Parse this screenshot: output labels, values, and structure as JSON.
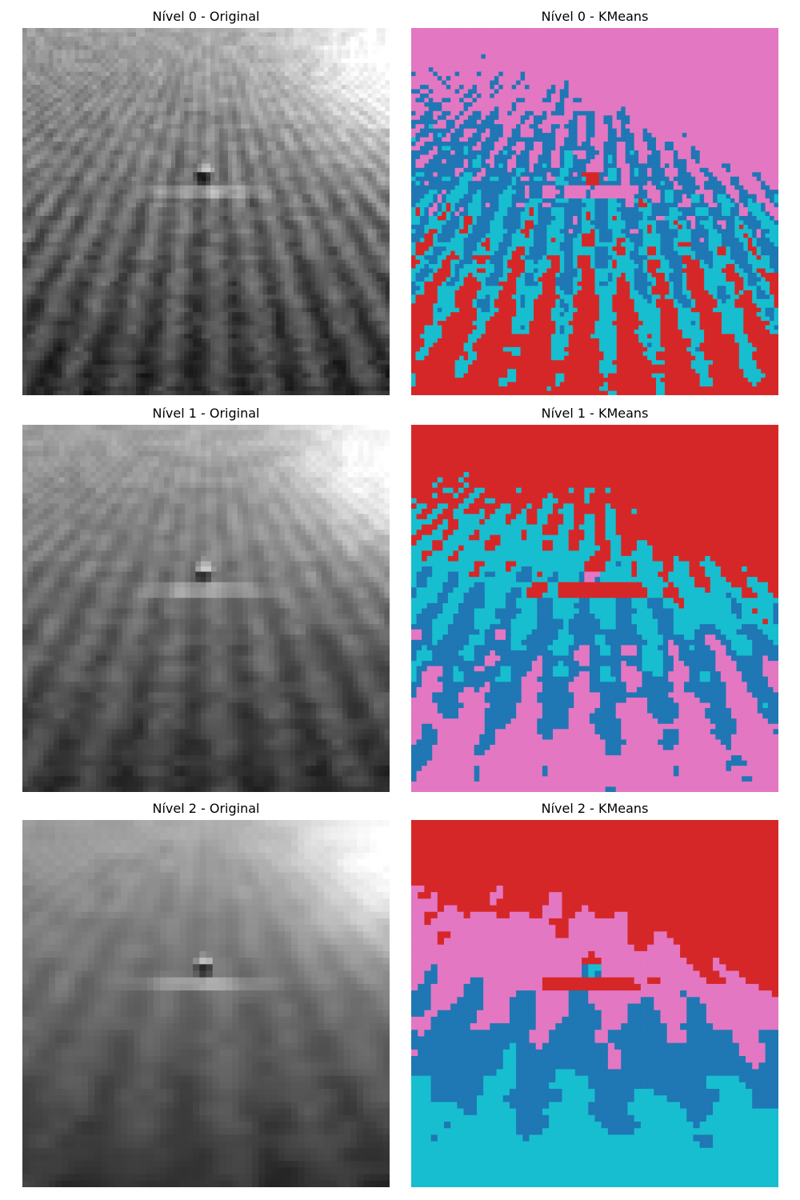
{
  "panels": [
    {
      "title": "Nível 0 - Original",
      "kind": "grayscale",
      "level": 0
    },
    {
      "title": "Nível 0 - KMeans",
      "kind": "kmeans",
      "level": 0,
      "cluster_order": [
        "pink",
        "blue",
        "cyan",
        "red"
      ]
    },
    {
      "title": "Nível 1 - Original",
      "kind": "grayscale",
      "level": 1
    },
    {
      "title": "Nível 1 - KMeans",
      "kind": "kmeans",
      "level": 1,
      "cluster_order": [
        "red",
        "cyan",
        "blue",
        "pink"
      ]
    },
    {
      "title": "Nível 2 - Original",
      "kind": "grayscale",
      "level": 2
    },
    {
      "title": "Nível 2 - KMeans",
      "kind": "kmeans",
      "level": 2,
      "cluster_order": [
        "red",
        "pink",
        "blue",
        "cyan"
      ]
    }
  ],
  "cluster_colors": {
    "pink": "#e377c2",
    "blue": "#1f77b4",
    "cyan": "#17becf",
    "red": "#d62728"
  }
}
